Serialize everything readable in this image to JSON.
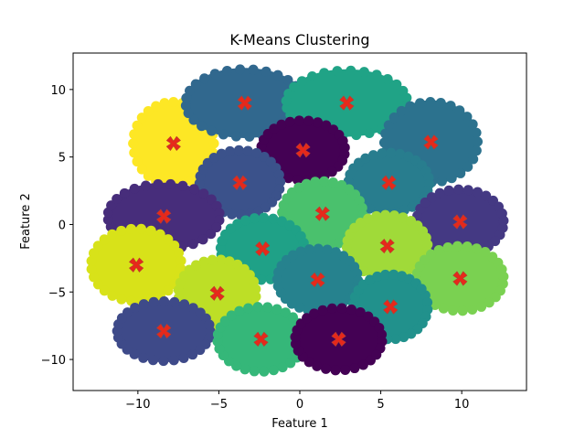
{
  "chart_data": {
    "type": "scatter",
    "title": "K-Means Clustering",
    "xlabel": "Feature 1",
    "ylabel": "Feature 2",
    "xlim": [
      -14,
      14
    ],
    "ylim": [
      -12.3,
      12.7
    ],
    "xticks": [
      -10,
      -5,
      0,
      5,
      10
    ],
    "xtick_labels": [
      "−10",
      "−5",
      "0",
      "5",
      "10"
    ],
    "yticks": [
      -10,
      -5,
      0,
      5,
      10
    ],
    "ytick_labels": [
      "−10",
      "−5",
      "0",
      "5",
      "10"
    ],
    "grid": false,
    "legend": "none",
    "clusters": [
      {
        "center": [
          -7.8,
          6.0
        ],
        "rx": 2.6,
        "ry": 3.2,
        "color": "#fde725"
      },
      {
        "center": [
          -3.4,
          9.0
        ],
        "rx": 3.8,
        "ry": 2.6,
        "color": "#31688e"
      },
      {
        "center": [
          2.9,
          9.0
        ],
        "rx": 3.9,
        "ry": 2.5,
        "color": "#20a386"
      },
      {
        "center": [
          8.1,
          6.1
        ],
        "rx": 3.0,
        "ry": 3.1,
        "color": "#2c728e"
      },
      {
        "center": [
          0.2,
          5.5
        ],
        "rx": 2.7,
        "ry": 2.3,
        "color": "#440154"
      },
      {
        "center": [
          5.5,
          3.1
        ],
        "rx": 2.6,
        "ry": 2.3,
        "color": "#287d8e"
      },
      {
        "center": [
          -3.7,
          3.1
        ],
        "rx": 2.6,
        "ry": 2.5,
        "color": "#3b528b"
      },
      {
        "center": [
          -8.4,
          0.6
        ],
        "rx": 3.6,
        "ry": 2.5,
        "color": "#472d7b"
      },
      {
        "center": [
          1.4,
          0.8
        ],
        "rx": 2.6,
        "ry": 2.5,
        "color": "#4ac16d"
      },
      {
        "center": [
          9.9,
          0.2
        ],
        "rx": 2.8,
        "ry": 2.5,
        "color": "#443983"
      },
      {
        "center": [
          -10.1,
          -3.0
        ],
        "rx": 2.9,
        "ry": 2.8,
        "color": "#d8e219"
      },
      {
        "center": [
          -2.3,
          -1.8
        ],
        "rx": 2.7,
        "ry": 2.4,
        "color": "#1fa187"
      },
      {
        "center": [
          5.4,
          -1.6
        ],
        "rx": 2.6,
        "ry": 2.4,
        "color": "#a0da39"
      },
      {
        "center": [
          -5.1,
          -5.1
        ],
        "rx": 2.5,
        "ry": 2.6,
        "color": "#bddf26"
      },
      {
        "center": [
          1.1,
          -4.1
        ],
        "rx": 2.6,
        "ry": 2.4,
        "color": "#26828e"
      },
      {
        "center": [
          9.9,
          -4.0
        ],
        "rx": 2.8,
        "ry": 2.5,
        "color": "#7ad151"
      },
      {
        "center": [
          5.6,
          -6.1
        ],
        "rx": 2.4,
        "ry": 2.5,
        "color": "#21918c"
      },
      {
        "center": [
          -8.4,
          -7.9
        ],
        "rx": 3.0,
        "ry": 2.3,
        "color": "#3e4a89"
      },
      {
        "center": [
          -2.4,
          -8.5
        ],
        "rx": 2.8,
        "ry": 2.5,
        "color": "#35b779"
      },
      {
        "center": [
          2.4,
          -8.5
        ],
        "rx": 2.8,
        "ry": 2.4,
        "color": "#440154"
      }
    ],
    "centroid_color": "#e8281a"
  }
}
